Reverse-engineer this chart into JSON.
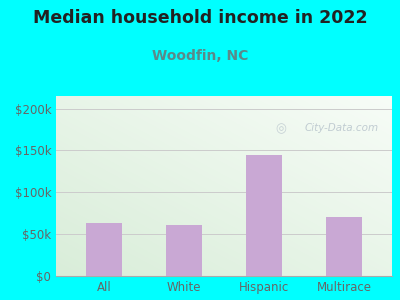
{
  "title": "Median household income in 2022",
  "subtitle": "Woodfin, NC",
  "categories": [
    "All",
    "White",
    "Hispanic",
    "Multirace"
  ],
  "values": [
    63000,
    61000,
    145000,
    70000
  ],
  "bar_color": "#C9A8D4",
  "title_fontsize": 12.5,
  "subtitle_fontsize": 10,
  "title_color": "#222222",
  "subtitle_color": "#5a8a8a",
  "yticks": [
    0,
    50000,
    100000,
    150000,
    200000
  ],
  "ytick_labels": [
    "$0",
    "$50k",
    "$100k",
    "$150k",
    "$200k"
  ],
  "ylim": [
    0,
    215000
  ],
  "bg_color": "#00FFFF",
  "watermark": "City-Data.com",
  "watermark_color": "#b8c4cc",
  "tick_color": "#666666",
  "grid_color": "#cccccc",
  "gradient_left": "#c8e8c8",
  "gradient_right": "#f0f8f0",
  "gradient_top": "#e8f5e8",
  "gradient_bottom_right": "#f8fff8"
}
